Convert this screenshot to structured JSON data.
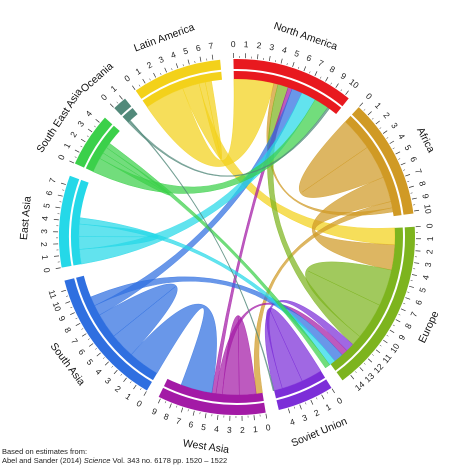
{
  "chart_data": {
    "type": "chord",
    "unit": "",
    "regions": [
      {
        "name": "North America",
        "color": "#e8191f",
        "size": 10.4
      },
      {
        "name": "Africa",
        "color": "#d09a25",
        "size": 10.2
      },
      {
        "name": "Europe",
        "color": "#7db41e",
        "size": 14.8
      },
      {
        "name": "Soviet Union",
        "color": "#7c2ed8",
        "size": 4.8
      },
      {
        "name": "West Asia",
        "color": "#a31aa6",
        "size": 9.2
      },
      {
        "name": "South Asia",
        "color": "#2f6fe0",
        "size": 11.8
      },
      {
        "name": "East Asia",
        "color": "#25d8e8",
        "size": 7.8
      },
      {
        "name": "South East Asia",
        "color": "#3bd04a",
        "size": 4.6
      },
      {
        "name": "Oceania",
        "color": "#52897a",
        "size": 1.2
      },
      {
        "name": "Latin America",
        "color": "#f3d11a",
        "size": 7.6
      }
    ],
    "flows": [
      {
        "from": "Latin America",
        "to": "North America",
        "value": 3.8
      },
      {
        "from": "Latin America",
        "to": "Europe",
        "value": 1.6
      },
      {
        "from": "Latin America",
        "to": "Latin America",
        "value": 0.6
      },
      {
        "from": "Africa",
        "to": "Africa",
        "value": 3.2
      },
      {
        "from": "Africa",
        "to": "Europe",
        "value": 2.4
      },
      {
        "from": "Africa",
        "to": "West Asia",
        "value": 0.6
      },
      {
        "from": "Africa",
        "to": "North America",
        "value": 0.4
      },
      {
        "from": "Europe",
        "to": "Europe",
        "value": 3.5
      },
      {
        "from": "Europe",
        "to": "North America",
        "value": 1.0
      },
      {
        "from": "Soviet Union",
        "to": "Soviet Union",
        "value": 2.0
      },
      {
        "from": "Soviet Union",
        "to": "Europe",
        "value": 0.8
      },
      {
        "from": "West Asia",
        "to": "West Asia",
        "value": 1.6
      },
      {
        "from": "West Asia",
        "to": "Europe",
        "value": 0.6
      },
      {
        "from": "West Asia",
        "to": "North America",
        "value": 0.4
      },
      {
        "from": "South Asia",
        "to": "West Asia",
        "value": 3.0
      },
      {
        "from": "South Asia",
        "to": "South Asia",
        "value": 2.4
      },
      {
        "from": "South Asia",
        "to": "North America",
        "value": 1.0
      },
      {
        "from": "South Asia",
        "to": "Europe",
        "value": 0.9
      },
      {
        "from": "East Asia",
        "to": "North America",
        "value": 1.4
      },
      {
        "from": "East Asia",
        "to": "East Asia",
        "value": 1.2
      },
      {
        "from": "East Asia",
        "to": "Europe",
        "value": 0.6
      },
      {
        "from": "South East Asia",
        "to": "North America",
        "value": 1.4
      },
      {
        "from": "South East Asia",
        "to": "South East Asia",
        "value": 0.6
      },
      {
        "from": "South East Asia",
        "to": "Europe",
        "value": 0.5
      },
      {
        "from": "Oceania",
        "to": "North America",
        "value": 0.2
      },
      {
        "from": "Oceania",
        "to": "Soviet Union",
        "value": 0.1
      }
    ]
  },
  "source": {
    "line1": "Based on estimates from:",
    "authors": "Abel and Sander (2014) ",
    "journal": "Science",
    "details": " Vol. 343 no. 6178 pp. 1520 – 1522"
  }
}
